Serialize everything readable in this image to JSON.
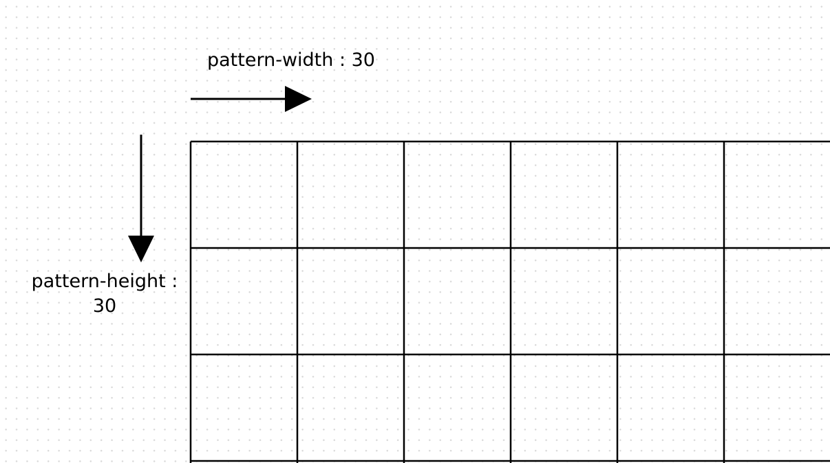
{
  "labels": {
    "width": "pattern-width : 30",
    "height_line1": "pattern-height :",
    "height_line2": "30"
  },
  "grid": {
    "columns": 6,
    "rows": 3,
    "line_color": "#000000"
  },
  "colors": {
    "background": "#ffffff",
    "dots": "#d9d9d9",
    "stroke": "#000000"
  }
}
